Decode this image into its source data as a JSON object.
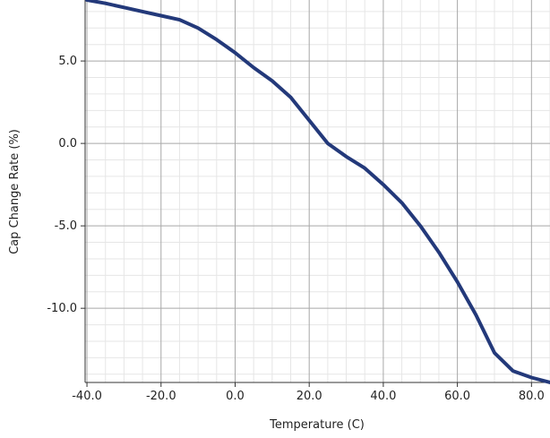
{
  "chart_data": {
    "type": "line",
    "title": "",
    "xlabel": "Temperature (C)",
    "ylabel": "Cap Change Rate (%)",
    "xlim": [
      -40.5,
      85
    ],
    "ylim": [
      -14.5,
      8.7
    ],
    "x_ticks": [
      -40,
      -20,
      0,
      20,
      40,
      60,
      80
    ],
    "x_tick_labels": [
      "-40.0",
      "-20.0",
      "0.0",
      "20.0",
      "40.0",
      "60.0",
      "80.0"
    ],
    "y_ticks": [
      5,
      0,
      -5,
      -10
    ],
    "y_tick_labels": [
      "5.0",
      "0.0",
      "-5.0",
      "-10.0"
    ],
    "grid": true,
    "minor_grid": true,
    "legend": "none",
    "series": [
      {
        "color": "#23397a",
        "x": [
          -40,
          -35,
          -30,
          -25,
          -20,
          -15,
          -10,
          -5,
          0,
          5,
          10,
          15,
          20,
          25,
          30,
          35,
          40,
          45,
          50,
          55,
          60,
          65,
          70,
          75,
          80,
          85
        ],
        "y": [
          8.7,
          8.5,
          8.25,
          8.0,
          7.75,
          7.5,
          7.0,
          6.3,
          5.5,
          4.6,
          3.8,
          2.8,
          1.4,
          0.0,
          -0.8,
          -1.5,
          -2.5,
          -3.6,
          -5.0,
          -6.6,
          -8.4,
          -10.4,
          -12.7,
          -13.8,
          -14.2,
          -14.5
        ]
      }
    ]
  }
}
